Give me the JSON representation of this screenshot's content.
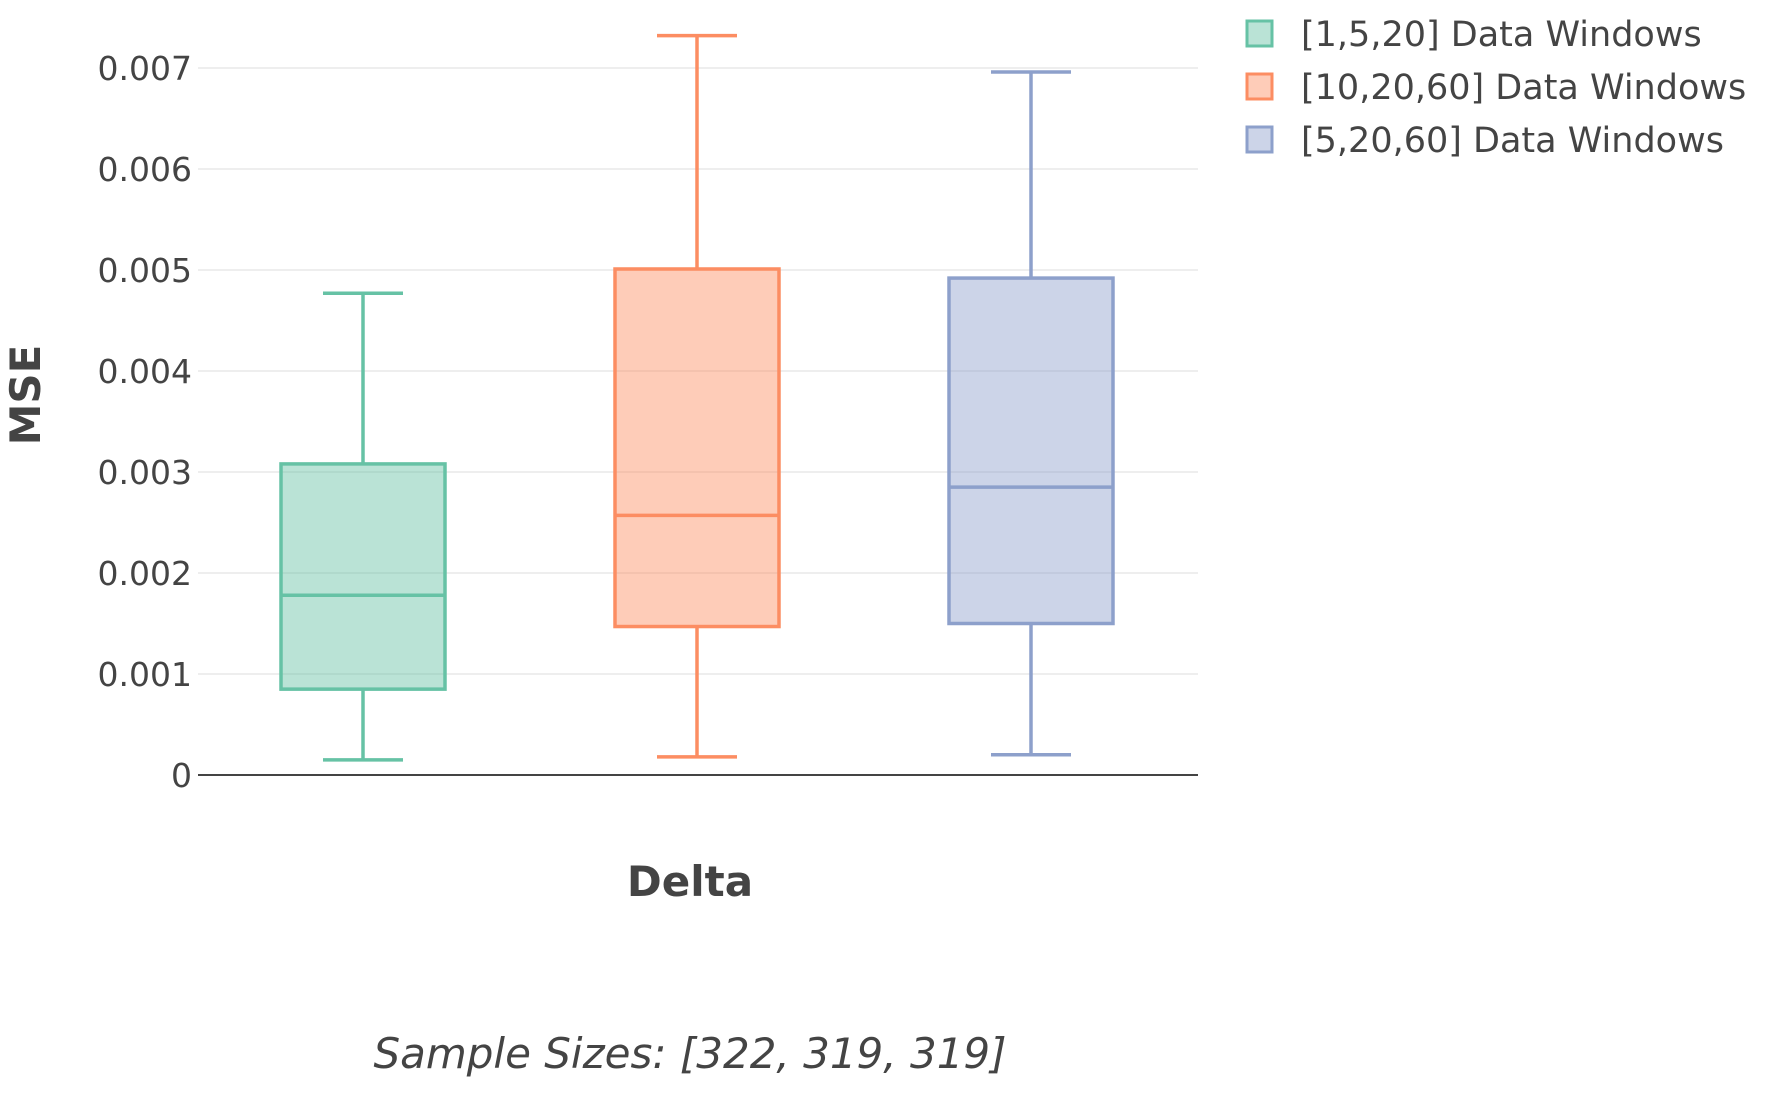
{
  "chart_data": {
    "type": "box",
    "xlabel": "Delta",
    "ylabel": "MSE",
    "ylim": [
      0,
      0.0074
    ],
    "yticks": [
      0,
      0.001,
      0.002,
      0.003,
      0.004,
      0.005,
      0.006,
      0.007
    ],
    "ytick_labels": [
      "0",
      "0.001",
      "0.002",
      "0.003",
      "0.004",
      "0.005",
      "0.006",
      "0.007"
    ],
    "grid": true,
    "legend_position": "top-right",
    "annotation": "Sample Sizes: [322, 319, 319]",
    "series": [
      {
        "name": "[1,5,20] Data Windows",
        "min": 0.00015,
        "q1": 0.00085,
        "median": 0.00178,
        "q3": 0.00308,
        "max": 0.00477,
        "color": "#66c2a5"
      },
      {
        "name": "[10,20,60] Data Windows",
        "min": 0.00018,
        "q1": 0.00147,
        "median": 0.00257,
        "q3": 0.00501,
        "max": 0.00732,
        "color": "#fc8d62"
      },
      {
        "name": "[5,20,60] Data Windows",
        "min": 0.0002,
        "q1": 0.0015,
        "median": 0.00285,
        "q3": 0.00492,
        "max": 0.00696,
        "color": "#8da0cb"
      }
    ]
  }
}
